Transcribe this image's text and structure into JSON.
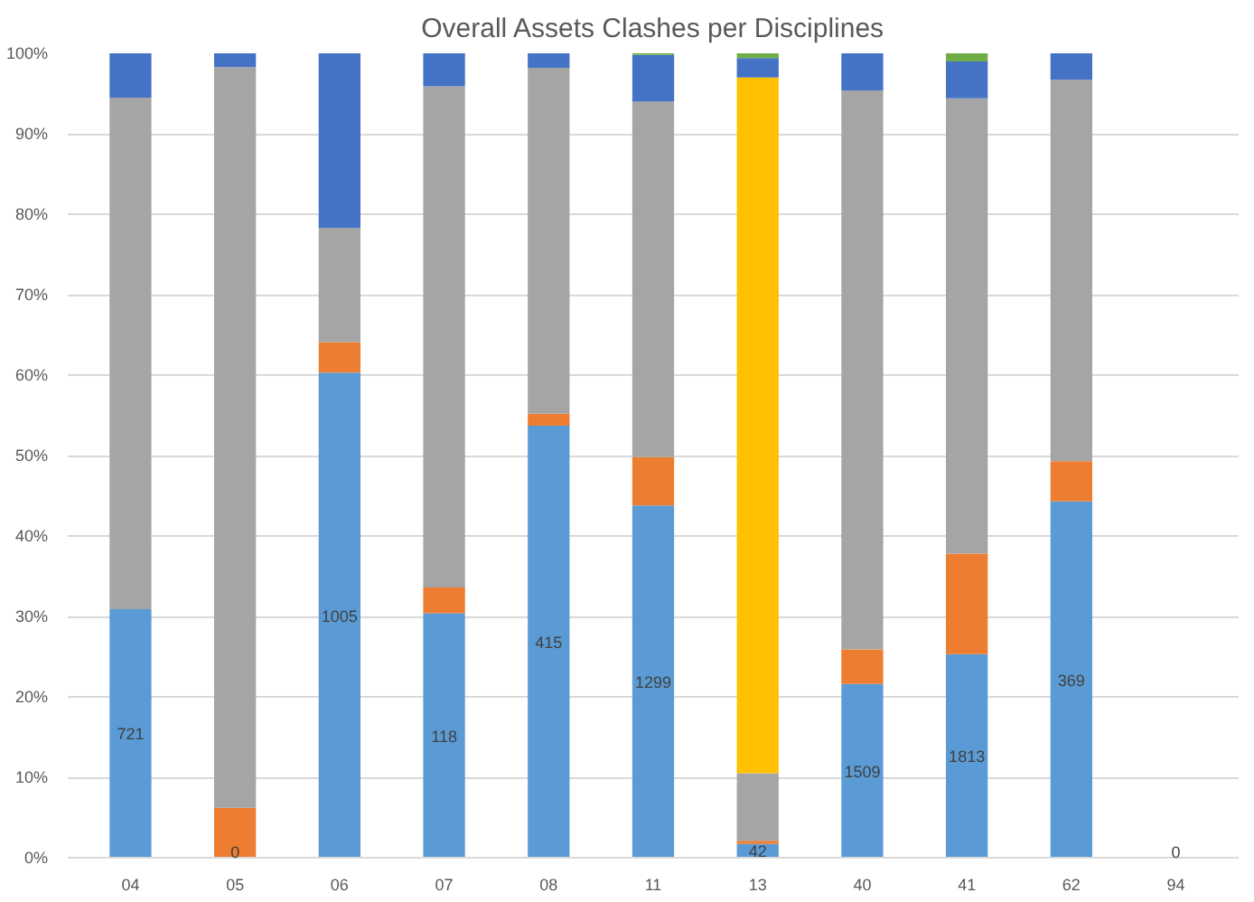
{
  "chart_data": {
    "type": "bar",
    "title": "Overall Assets Clashes per Disciplines",
    "stacked": true,
    "categories": [
      "04",
      "05",
      "06",
      "07",
      "08",
      "11",
      "13",
      "40",
      "41",
      "62",
      "94"
    ],
    "series": [
      {
        "color": "#5b9bd5",
        "values": [
          30.9,
          0,
          60.3,
          30.4,
          53.7,
          43.8,
          1.7,
          21.6,
          25.3,
          44.3,
          0
        ]
      },
      {
        "color": "#ed7d31",
        "values": [
          0,
          6.2,
          3.8,
          3.2,
          1.5,
          6.0,
          0.4,
          4.3,
          12.5,
          5.0,
          0
        ]
      },
      {
        "color": "#a5a5a5",
        "values": [
          63.6,
          92.1,
          14.2,
          62.3,
          43.0,
          44.2,
          8.4,
          69.5,
          56.6,
          47.4,
          0
        ]
      },
      {
        "color": "#ffc000",
        "values": [
          0,
          0,
          0,
          0,
          0,
          0,
          86.5,
          0,
          0,
          0,
          0
        ]
      },
      {
        "color": "#4472c4",
        "values": [
          5.5,
          1.7,
          21.7,
          4.1,
          1.8,
          5.8,
          2.4,
          4.6,
          4.6,
          3.3,
          0
        ]
      },
      {
        "color": "#70ad47",
        "values": [
          0,
          0,
          0,
          0,
          0,
          0.2,
          0.6,
          0,
          1.0,
          0,
          0
        ]
      }
    ],
    "ylim": [
      0,
      100
    ],
    "yticks": [
      {
        "value": 0,
        "label": "0%"
      },
      {
        "value": 10,
        "label": "10%"
      },
      {
        "value": 20,
        "label": "20%"
      },
      {
        "value": 30,
        "label": "30%"
      },
      {
        "value": 40,
        "label": "40%"
      },
      {
        "value": 50,
        "label": "50%"
      },
      {
        "value": 60,
        "label": "60%"
      },
      {
        "value": 70,
        "label": "70%"
      },
      {
        "value": 80,
        "label": "80%"
      },
      {
        "value": 90,
        "label": "90%"
      },
      {
        "value": 100,
        "label": "100%"
      }
    ],
    "grid": "y",
    "annotations": [
      "721",
      "0",
      "1005",
      "118",
      "415",
      "1299",
      "42",
      "1509",
      "1813",
      "369",
      "0"
    ]
  }
}
